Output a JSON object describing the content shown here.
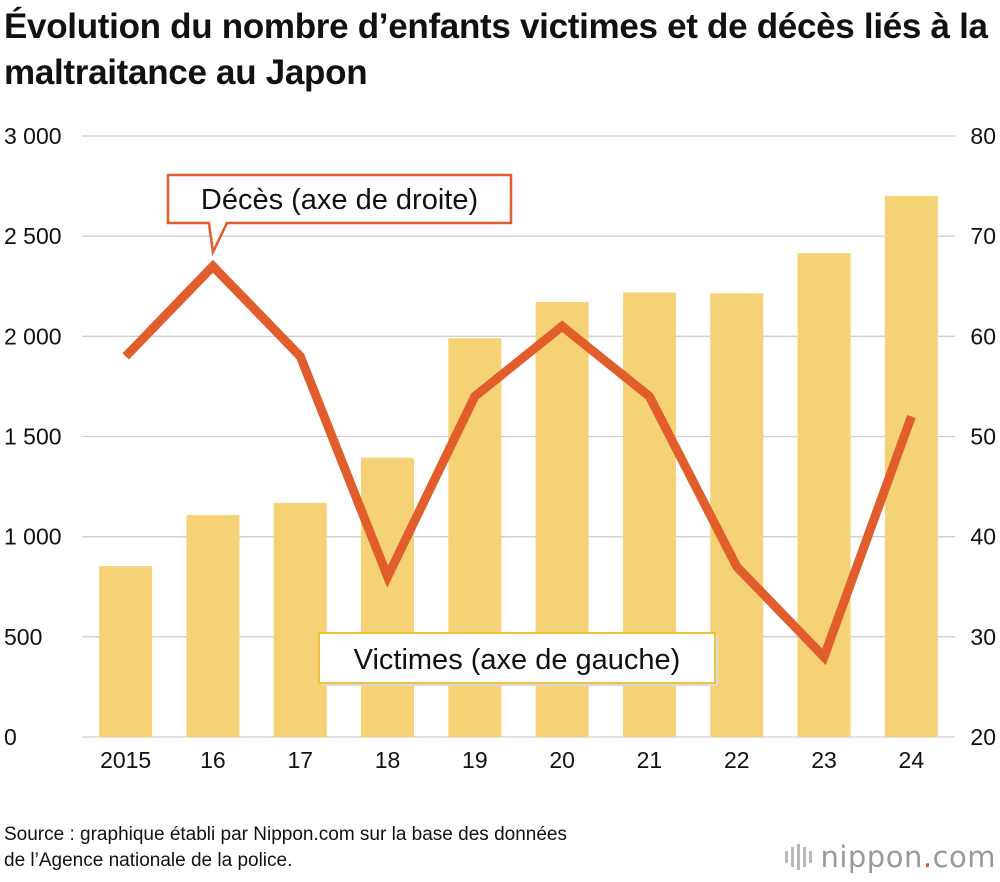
{
  "title": "Évolution du nombre d’enfants victimes et de décès liés à la maltraitance au Japon",
  "source": {
    "line1": "Source : graphique établi par Nippon.com sur la base des données",
    "line2": "de l’Agence nationale de la police."
  },
  "logo": {
    "name": "nippon",
    "dot": ".",
    "tld": "com"
  },
  "chart_data": {
    "type": "bar+line",
    "categories": [
      "2015",
      "16",
      "17",
      "18",
      "19",
      "20",
      "21",
      "22",
      "23",
      "24"
    ],
    "series": [
      {
        "name": "Victimes (axe de gauche)",
        "type": "bar",
        "axis": "left",
        "color": "#f5d275",
        "values": [
          853,
          1108,
          1168,
          1394,
          1991,
          2172,
          2219,
          2215,
          2415,
          2701
        ]
      },
      {
        "name": "Décès (axe de droite)",
        "type": "line",
        "axis": "right",
        "color": "#e15d2c",
        "values": [
          58,
          67,
          58,
          36,
          54,
          61,
          54,
          37,
          28,
          52
        ]
      }
    ],
    "left_axis": {
      "min": 0,
      "max": 3000,
      "ticks": [
        0,
        500,
        1000,
        1500,
        2000,
        2500,
        3000
      ],
      "tick_labels": [
        "0",
        "500",
        "1 000",
        "1 500",
        "2 000",
        "2 500",
        "3 000"
      ]
    },
    "right_axis": {
      "min": 20,
      "max": 80,
      "ticks": [
        20,
        30,
        40,
        50,
        60,
        70,
        80
      ],
      "tick_labels": [
        "20",
        "30",
        "40",
        "50",
        "60",
        "70",
        "80"
      ]
    },
    "grid": true,
    "gridline_color": "#cfcfcf",
    "callout_border_color": "#e15d2c",
    "callout_victims_border_color": "#f0c040"
  }
}
